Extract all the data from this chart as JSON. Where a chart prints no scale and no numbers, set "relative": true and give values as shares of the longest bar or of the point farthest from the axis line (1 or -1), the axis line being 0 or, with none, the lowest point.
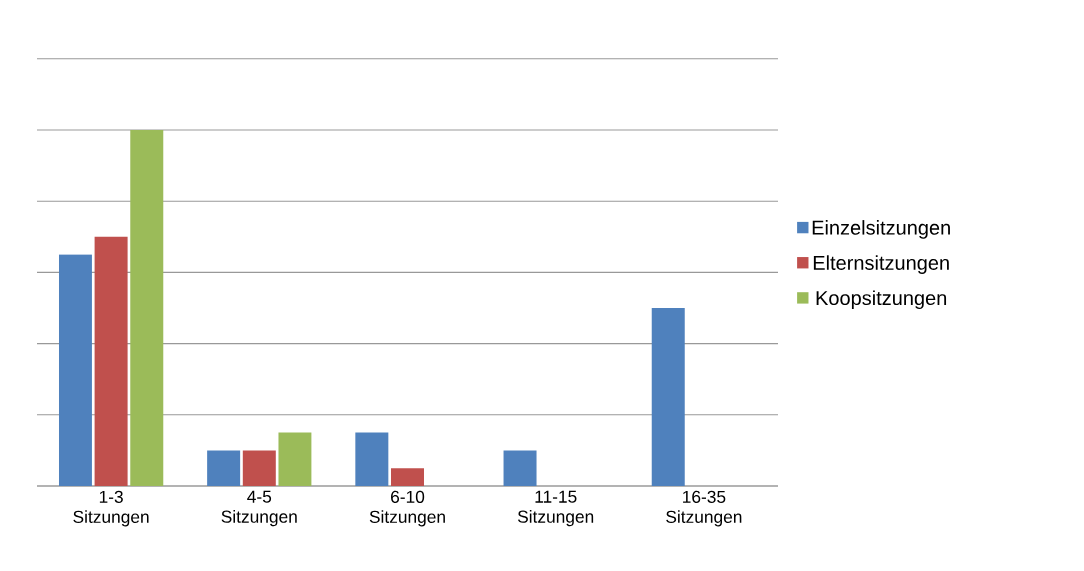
{
  "chart_data": {
    "type": "bar",
    "relative": true,
    "grid": "y",
    "legend": "right",
    "categories": [
      "1-3 Sitzungen",
      "4-5 Sitzungen",
      "6-10 Sitzungen",
      "11-15 Sitzungen",
      "16-35 Sitzungen"
    ],
    "series": [
      {
        "name": "Einzelsitzungen",
        "color": "#4f81bd",
        "values": [
          0.65,
          0.1,
          0.15,
          0.1,
          0.5
        ]
      },
      {
        "name": "Elternsitzungen",
        "color": "#c0504d",
        "values": [
          0.7,
          0.1,
          0.05,
          null,
          null
        ]
      },
      {
        "name": "Koopsitzungen",
        "color": "#9bbb59",
        "values": [
          1,
          0.15,
          null,
          null,
          null
        ]
      }
    ]
  }
}
